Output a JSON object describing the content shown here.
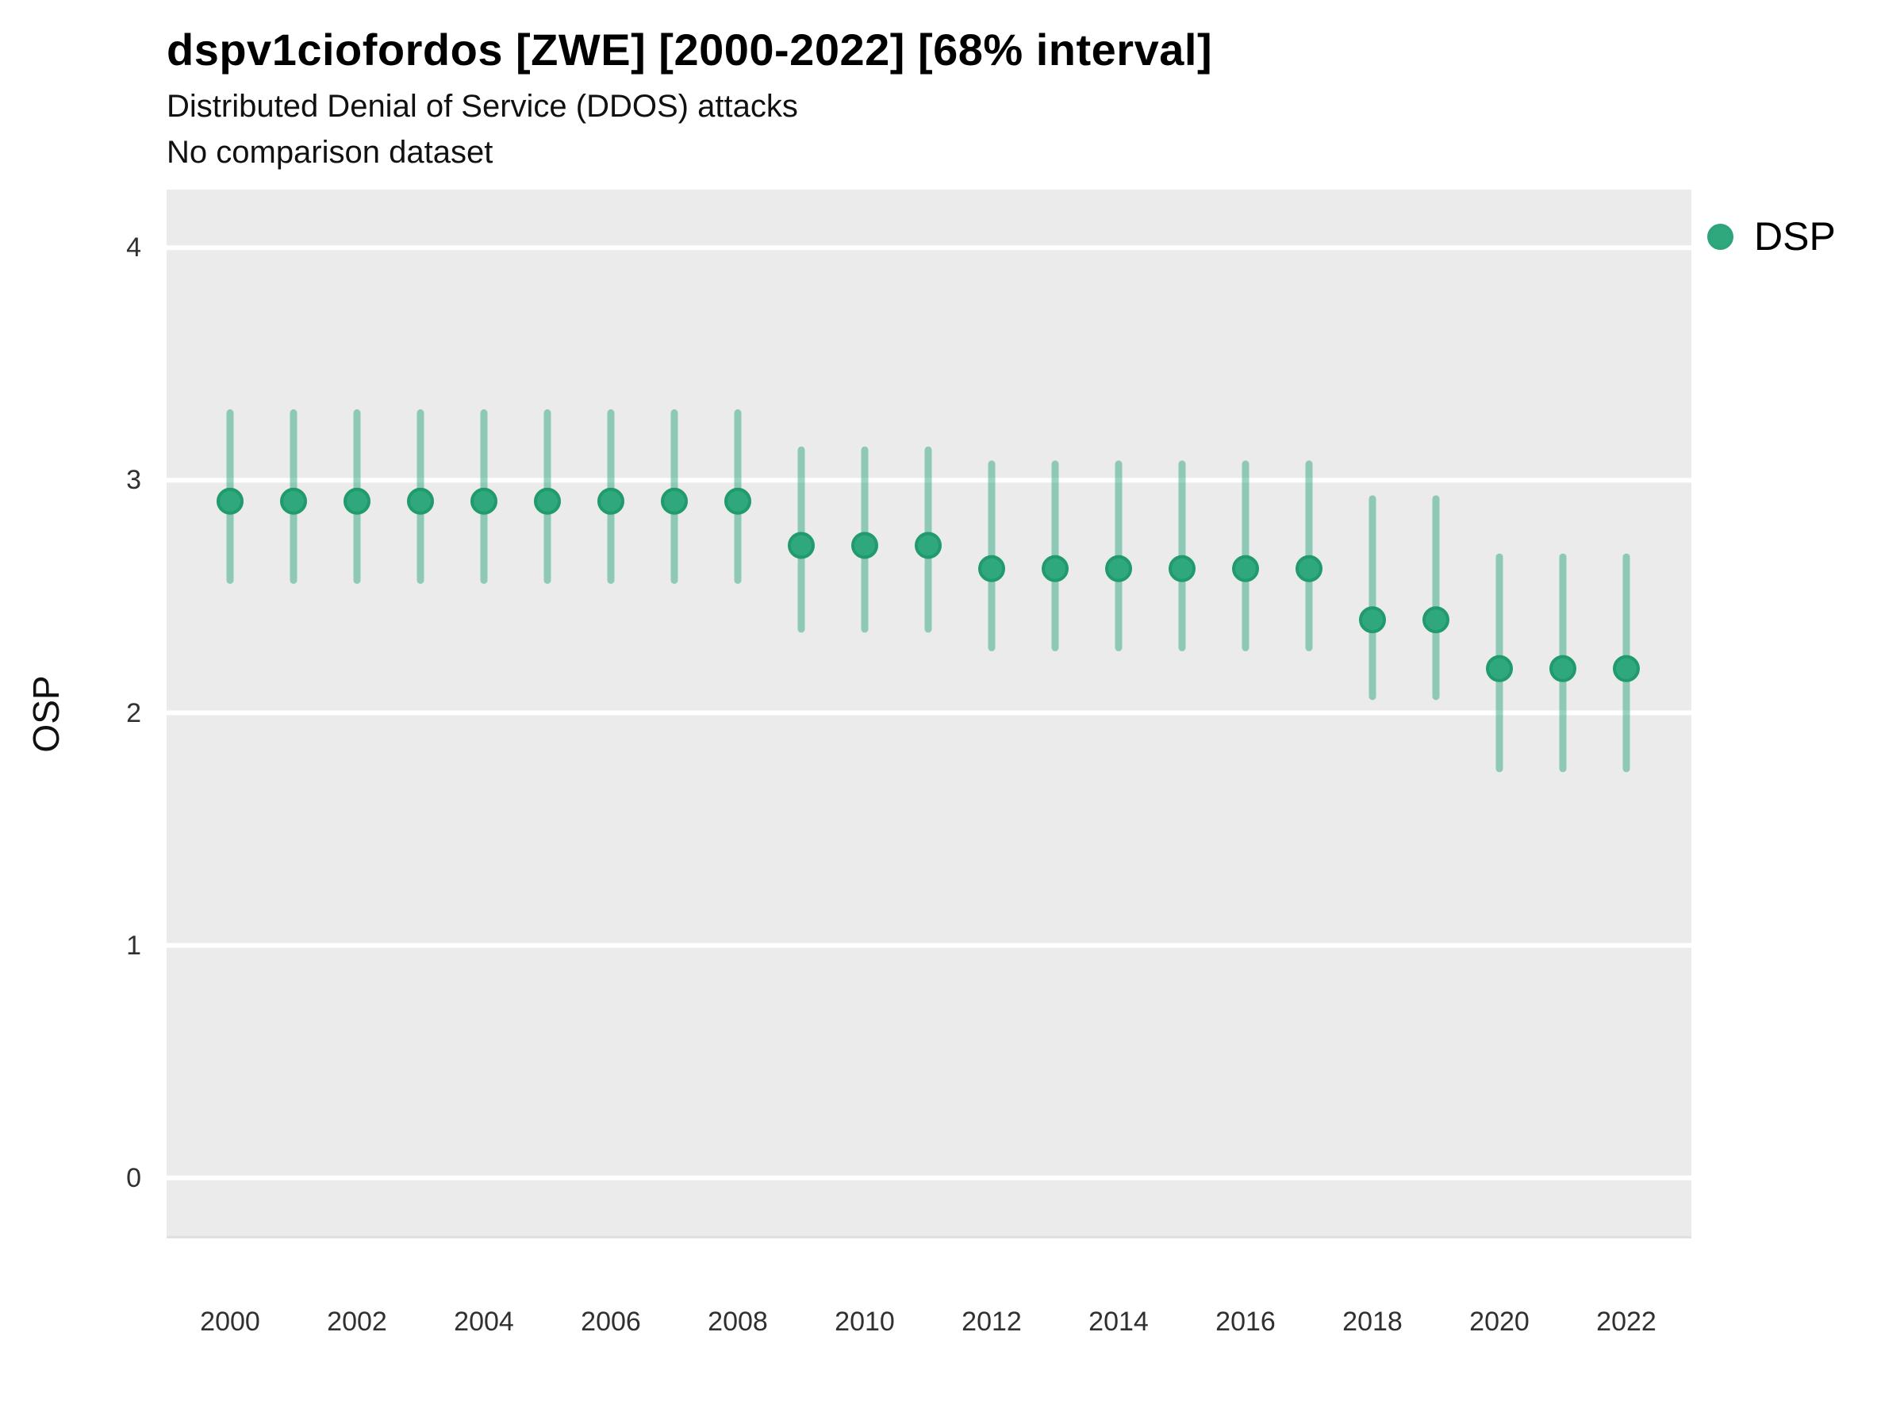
{
  "header": {
    "title": "dspv1ciofordos [ZWE] [2000-2022] [68% interval]",
    "subtitle": "Distributed Denial of Service (DDOS) attacks",
    "comparison_note": "No comparison dataset"
  },
  "legend": {
    "position": "top-right",
    "items": [
      {
        "label": "DSP",
        "color": "#2FA87D"
      }
    ]
  },
  "colors": {
    "panel_background": "#EBEBEB",
    "gridline": "#FFFFFF",
    "marker_fill": "#2FA87D",
    "marker_stroke": "#219A6C",
    "error_bar": "rgba(47,168,125,0.5)",
    "text": "#000000",
    "tick_text": "#303030"
  },
  "chart_data": {
    "type": "scatter",
    "title": "dspv1ciofordos [ZWE] [2000-2022] [68% interval]",
    "subtitle": "Distributed Denial of Service (DDOS) attacks",
    "note": "No comparison dataset",
    "interval_label": "68% interval",
    "xlabel": "",
    "ylabel": "OSP",
    "ylim": [
      -0.25,
      4.25
    ],
    "y_ticks": [
      0,
      1,
      2,
      3,
      4
    ],
    "x_ticks": [
      2000,
      2002,
      2004,
      2006,
      2008,
      2010,
      2012,
      2014,
      2016,
      2018,
      2020,
      2022
    ],
    "grid": "horizontal-only, white lines on gray panel",
    "legend_position": "top-right",
    "series": [
      {
        "name": "DSP",
        "color": "#2FA87D",
        "points": [
          {
            "year": 2000,
            "value": 2.91,
            "low": 2.57,
            "high": 3.29
          },
          {
            "year": 2001,
            "value": 2.91,
            "low": 2.57,
            "high": 3.29
          },
          {
            "year": 2002,
            "value": 2.91,
            "low": 2.57,
            "high": 3.29
          },
          {
            "year": 2003,
            "value": 2.91,
            "low": 2.57,
            "high": 3.29
          },
          {
            "year": 2004,
            "value": 2.91,
            "low": 2.57,
            "high": 3.29
          },
          {
            "year": 2005,
            "value": 2.91,
            "low": 2.57,
            "high": 3.29
          },
          {
            "year": 2006,
            "value": 2.91,
            "low": 2.57,
            "high": 3.29
          },
          {
            "year": 2007,
            "value": 2.91,
            "low": 2.57,
            "high": 3.29
          },
          {
            "year": 2008,
            "value": 2.91,
            "low": 2.57,
            "high": 3.29
          },
          {
            "year": 2009,
            "value": 2.72,
            "low": 2.36,
            "high": 3.13
          },
          {
            "year": 2010,
            "value": 2.72,
            "low": 2.36,
            "high": 3.13
          },
          {
            "year": 2011,
            "value": 2.72,
            "low": 2.36,
            "high": 3.13
          },
          {
            "year": 2012,
            "value": 2.62,
            "low": 2.28,
            "high": 3.07
          },
          {
            "year": 2013,
            "value": 2.62,
            "low": 2.28,
            "high": 3.07
          },
          {
            "year": 2014,
            "value": 2.62,
            "low": 2.28,
            "high": 3.07
          },
          {
            "year": 2015,
            "value": 2.62,
            "low": 2.28,
            "high": 3.07
          },
          {
            "year": 2016,
            "value": 2.62,
            "low": 2.28,
            "high": 3.07
          },
          {
            "year": 2017,
            "value": 2.62,
            "low": 2.28,
            "high": 3.07
          },
          {
            "year": 2018,
            "value": 2.4,
            "low": 2.07,
            "high": 2.92
          },
          {
            "year": 2019,
            "value": 2.4,
            "low": 2.07,
            "high": 2.92
          },
          {
            "year": 2020,
            "value": 2.19,
            "low": 1.76,
            "high": 2.67
          },
          {
            "year": 2021,
            "value": 2.19,
            "low": 1.76,
            "high": 2.67
          },
          {
            "year": 2022,
            "value": 2.19,
            "low": 1.76,
            "high": 2.67
          }
        ]
      }
    ]
  }
}
